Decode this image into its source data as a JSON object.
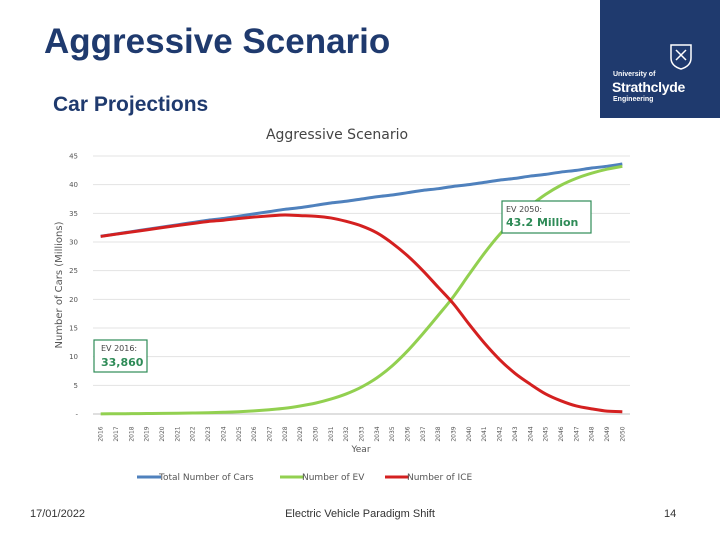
{
  "slide": {
    "title": "Aggressive Scenario",
    "subtitle": "Car Projections",
    "date": "17/01/2022",
    "footer_center": "Electric Vehicle Paradigm Shift",
    "page_number": "14"
  },
  "logo": {
    "line1": "University of",
    "line2": "Strathclyde",
    "line3": "Engineering",
    "color": "#1f3a6e"
  },
  "chart_data": {
    "type": "line",
    "title": "Aggressive Scenario",
    "xlabel": "Year",
    "ylabel": "Number of Cars (Millions)",
    "ylim": [
      0,
      45
    ],
    "yticks": [
      0,
      5,
      10,
      15,
      20,
      25,
      30,
      35,
      40,
      45
    ],
    "ytick_labels": [
      "-",
      "5",
      "10",
      "15",
      "20",
      "25",
      "30",
      "35",
      "40",
      "45"
    ],
    "grid": true,
    "legend_position": "bottom",
    "categories": [
      "2016",
      "2017",
      "2018",
      "2019",
      "2020",
      "2021",
      "2022",
      "2023",
      "2024",
      "2025",
      "2026",
      "2027",
      "2028",
      "2029",
      "2030",
      "2031",
      "2032",
      "2033",
      "2034",
      "2035",
      "2036",
      "2037",
      "2038",
      "2039",
      "2040",
      "2041",
      "2042",
      "2043",
      "2044",
      "2045",
      "2046",
      "2047",
      "2048",
      "2049",
      "2050"
    ],
    "series": [
      {
        "name": "Total Number of Cars",
        "color": "#4f81bd",
        "values": [
          31.0,
          31.4,
          31.8,
          32.2,
          32.6,
          33.0,
          33.4,
          33.8,
          34.1,
          34.5,
          34.9,
          35.3,
          35.7,
          36.0,
          36.4,
          36.8,
          37.1,
          37.5,
          37.9,
          38.2,
          38.6,
          39.0,
          39.3,
          39.7,
          40.0,
          40.4,
          40.8,
          41.1,
          41.5,
          41.8,
          42.2,
          42.5,
          42.9,
          43.2,
          43.6
        ]
      },
      {
        "name": "Number of EV",
        "color": "#92d050",
        "values": [
          0.03,
          0.04,
          0.06,
          0.08,
          0.1,
          0.13,
          0.17,
          0.22,
          0.3,
          0.4,
          0.55,
          0.75,
          1.0,
          1.4,
          1.9,
          2.6,
          3.5,
          4.7,
          6.3,
          8.4,
          11.0,
          14.0,
          17.2,
          20.5,
          24.3,
          28.0,
          31.3,
          34.0,
          36.3,
          38.3,
          39.9,
          41.1,
          42.0,
          42.7,
          43.2
        ]
      },
      {
        "name": "Number of ICE",
        "color": "#d42020",
        "values": [
          30.97,
          31.36,
          31.74,
          32.12,
          32.5,
          32.87,
          33.23,
          33.58,
          33.8,
          34.1,
          34.35,
          34.55,
          34.7,
          34.6,
          34.5,
          34.2,
          33.6,
          32.8,
          31.6,
          29.8,
          27.6,
          25.0,
          22.1,
          19.2,
          15.7,
          12.4,
          9.5,
          7.1,
          5.2,
          3.5,
          2.3,
          1.4,
          0.9,
          0.5,
          0.4
        ]
      }
    ],
    "annotations": [
      {
        "label": "EV 2016:",
        "value": "33,860"
      },
      {
        "label": "EV 2050:",
        "value": "43.2 Million"
      }
    ]
  }
}
